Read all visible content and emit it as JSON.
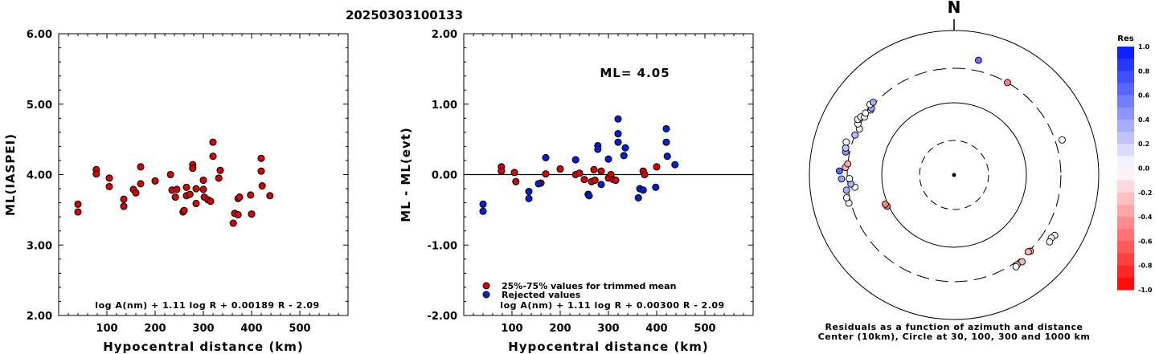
{
  "title": "20250303100133",
  "chart_data": [
    {
      "type": "scatter",
      "xlabel": "Hypocentral distance (km)",
      "ylabel": "ML(IASPEI)",
      "xlim": [
        0,
        600
      ],
      "ylim": [
        2.0,
        6.0
      ],
      "xticks": [
        "100",
        "200",
        "300",
        "400",
        "500"
      ],
      "yticks": [
        "2.00",
        "3.00",
        "4.00",
        "5.00",
        "6.00"
      ],
      "formula": "log A(nm) + 1.11 log R + 0.00189 R - 2.09",
      "series": [
        {
          "color": "#e00000",
          "points": [
            [
              40,
              3.58
            ],
            [
              40,
              3.47
            ],
            [
              78,
              4.07
            ],
            [
              78,
              4.01
            ],
            [
              105,
              3.95
            ],
            [
              105,
              3.83
            ],
            [
              135,
              3.65
            ],
            [
              135,
              3.55
            ],
            [
              155,
              3.79
            ],
            [
              160,
              3.74
            ],
            [
              170,
              4.11
            ],
            [
              170,
              3.87
            ],
            [
              200,
              3.91
            ],
            [
              232,
              4.0
            ],
            [
              235,
              3.78
            ],
            [
              242,
              3.68
            ],
            [
              245,
              3.79
            ],
            [
              258,
              3.47
            ],
            [
              260,
              3.49
            ],
            [
              265,
              3.7
            ],
            [
              265,
              3.82
            ],
            [
              272,
              3.72
            ],
            [
              278,
              4.14
            ],
            [
              278,
              4.09
            ],
            [
              285,
              3.8
            ],
            [
              285,
              3.59
            ],
            [
              300,
              3.92
            ],
            [
              300,
              3.79
            ],
            [
              302,
              3.68
            ],
            [
              310,
              3.64
            ],
            [
              315,
              3.62
            ],
            [
              320,
              4.46
            ],
            [
              320,
              4.26
            ],
            [
              332,
              3.95
            ],
            [
              335,
              4.06
            ],
            [
              362,
              3.31
            ],
            [
              365,
              3.45
            ],
            [
              372,
              3.43
            ],
            [
              372,
              3.66
            ],
            [
              375,
              3.68
            ],
            [
              398,
              3.71
            ],
            [
              400,
              3.44
            ],
            [
              420,
              4.23
            ],
            [
              420,
              4.05
            ],
            [
              422,
              3.84
            ],
            [
              438,
              3.7
            ]
          ]
        }
      ]
    },
    {
      "type": "scatter",
      "xlabel": "Hypocentral distance (km)",
      "ylabel": "ML - ML(evt)",
      "xlim": [
        0,
        600
      ],
      "ylim": [
        -2.0,
        2.0
      ],
      "xticks": [
        "100",
        "200",
        "300",
        "400",
        "500"
      ],
      "yticks": [
        "-2.00",
        "-1.00",
        "0.00",
        "1.00",
        "2.00"
      ],
      "annotation": "ML= 4.05",
      "formula": "log A(nm) + 1.11 log R + 0.00300 R - 2.09",
      "legend": [
        "25%-75% values for trimmed mean",
        "Rejected values"
      ],
      "series": [
        {
          "name": "25%-75% values for trimmed mean",
          "color": "#e00000",
          "points": [
            [
              78,
              0.11
            ],
            [
              78,
              0.05
            ],
            [
              105,
              0.03
            ],
            [
              108,
              -0.1
            ],
            [
              160,
              -0.12
            ],
            [
              170,
              0.01
            ],
            [
              200,
              0.08
            ],
            [
              232,
              0.0
            ],
            [
              240,
              0.02
            ],
            [
              250,
              -0.07
            ],
            [
              265,
              -0.1
            ],
            [
              270,
              0.07
            ],
            [
              272,
              -0.08
            ],
            [
              285,
              0.05
            ],
            [
              300,
              -0.05
            ],
            [
              305,
              0.0
            ],
            [
              310,
              -0.07
            ],
            [
              315,
              -0.08
            ],
            [
              372,
              0.05
            ],
            [
              375,
              0.0
            ],
            [
              400,
              0.11
            ]
          ]
        },
        {
          "name": "Rejected values",
          "color": "#0020e0",
          "points": [
            [
              40,
              -0.42
            ],
            [
              40,
              -0.52
            ],
            [
              135,
              -0.24
            ],
            [
              135,
              -0.34
            ],
            [
              155,
              -0.13
            ],
            [
              170,
              0.24
            ],
            [
              232,
              0.21
            ],
            [
              258,
              -0.28
            ],
            [
              260,
              -0.3
            ],
            [
              278,
              0.41
            ],
            [
              278,
              0.36
            ],
            [
              285,
              -0.14
            ],
            [
              300,
              0.22
            ],
            [
              320,
              0.79
            ],
            [
              320,
              0.58
            ],
            [
              320,
              0.46
            ],
            [
              332,
              0.27
            ],
            [
              335,
              0.38
            ],
            [
              362,
              -0.33
            ],
            [
              365,
              -0.2
            ],
            [
              372,
              -0.22
            ],
            [
              398,
              -0.18
            ],
            [
              420,
              0.65
            ],
            [
              420,
              0.46
            ],
            [
              422,
              0.26
            ],
            [
              438,
              0.14
            ]
          ]
        }
      ]
    },
    {
      "type": "scatter",
      "title": "N",
      "caption_1": "Residuals as a function of azimuth and distance",
      "caption_2": "Center (10km), Circle at 30, 100, 300 and 1000 km",
      "colorbar_title": "Res",
      "colorbar_ticks": [
        "1.0",
        "0.8",
        "0.6",
        "0.4",
        "0.2",
        "0.0",
        "-0.2",
        "-0.4",
        "-0.6",
        "-0.8",
        "-1.0"
      ],
      "colorbar_range": [
        -1.0,
        1.0
      ],
      "stations": [
        {
          "az": 12,
          "dist": 420,
          "res": 0.6
        },
        {
          "az": 30,
          "dist": 300,
          "res": -0.5
        },
        {
          "az": 72,
          "dist": 372,
          "res": 0.0
        },
        {
          "az": 121,
          "dist": 420,
          "res": 0.0
        },
        {
          "az": 123,
          "dist": 400,
          "res": 0.0
        },
        {
          "az": 125,
          "dist": 410,
          "res": 0.05
        },
        {
          "az": 135,
          "dist": 310,
          "res": -0.4
        },
        {
          "az": 136,
          "dist": 300,
          "res": -0.3
        },
        {
          "az": 142,
          "dist": 335,
          "res": -0.3
        },
        {
          "az": 145,
          "dist": 330,
          "res": -0.2
        },
        {
          "az": 146,
          "dist": 340,
          "res": 0.0
        },
        {
          "az": 245,
          "dist": 105,
          "res": -0.6
        },
        {
          "az": 247,
          "dist": 108,
          "res": -0.5
        },
        {
          "az": 255,
          "dist": 320,
          "res": 0.05
        },
        {
          "az": 258,
          "dist": 330,
          "res": 0.05
        },
        {
          "az": 262,
          "dist": 318,
          "res": 0.35
        },
        {
          "az": 263,
          "dist": 240,
          "res": 0.0
        },
        {
          "az": 265,
          "dist": 270,
          "res": 0.35
        },
        {
          "az": 268,
          "dist": 360,
          "res": 0.4
        },
        {
          "az": 268,
          "dist": 280,
          "res": 0.0
        },
        {
          "az": 272,
          "dist": 385,
          "res": 0.65
        },
        {
          "az": 274,
          "dist": 320,
          "res": -0.3
        },
        {
          "az": 276,
          "dist": 300,
          "res": -0.35
        },
        {
          "az": 282,
          "dist": 340,
          "res": 0.45
        },
        {
          "az": 284,
          "dist": 350,
          "res": 0.25
        },
        {
          "az": 287,
          "dist": 362,
          "res": 0.05
        },
        {
          "az": 292,
          "dist": 300,
          "res": 0.3
        },
        {
          "az": 296,
          "dist": 285,
          "res": -0.1
        },
        {
          "az": 298,
          "dist": 320,
          "res": 0.0
        },
        {
          "az": 300,
          "dist": 345,
          "res": 0.1
        },
        {
          "az": 302,
          "dist": 330,
          "res": 0.0
        },
        {
          "az": 303,
          "dist": 300,
          "res": 0.05
        },
        {
          "az": 305,
          "dist": 312,
          "res": 0.0
        },
        {
          "az": 308,
          "dist": 290,
          "res": 0.1
        },
        {
          "az": 309,
          "dist": 295,
          "res": 0.4
        },
        {
          "az": 310,
          "dist": 330,
          "res": 0.0
        },
        {
          "az": 312,
          "dist": 320,
          "res": 0.35
        }
      ]
    }
  ]
}
